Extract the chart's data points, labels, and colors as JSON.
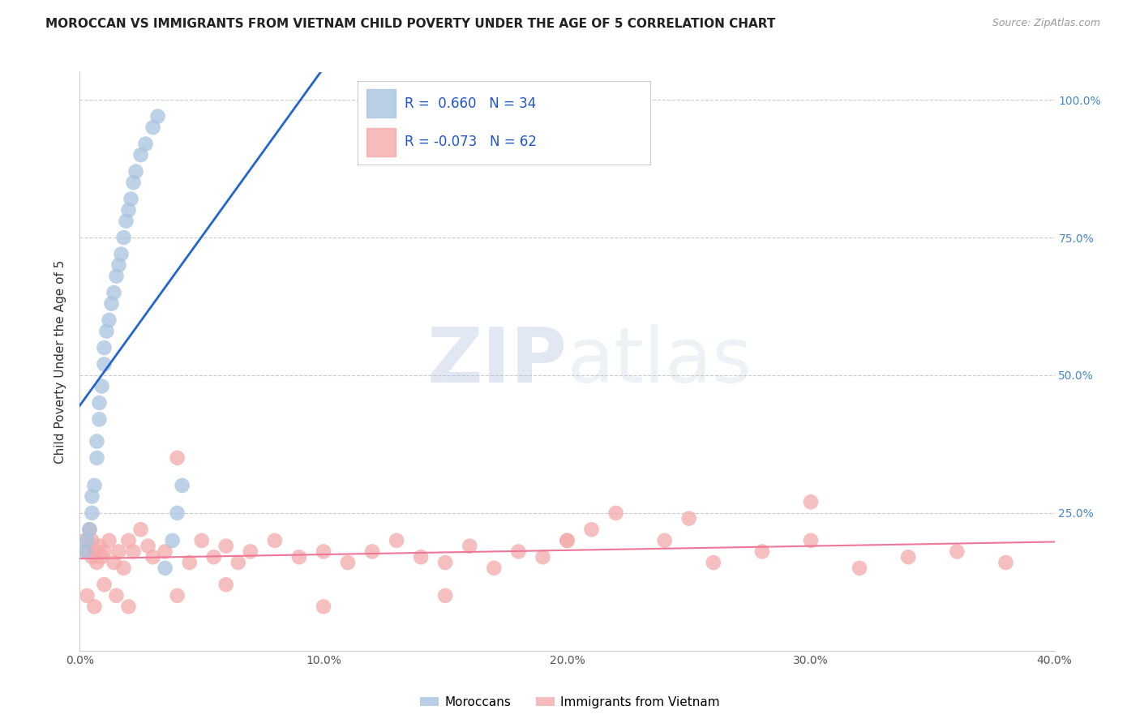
{
  "title": "MOROCCAN VS IMMIGRANTS FROM VIETNAM CHILD POVERTY UNDER THE AGE OF 5 CORRELATION CHART",
  "source": "Source: ZipAtlas.com",
  "ylabel": "Child Poverty Under the Age of 5",
  "watermark": "ZIPatlas",
  "legend_blue_label": "Moroccans",
  "legend_pink_label": "Immigrants from Vietnam",
  "R_blue": 0.66,
  "N_blue": 34,
  "R_pink": -0.073,
  "N_pink": 62,
  "blue_color": "#A8C4E0",
  "pink_color": "#F4AAAA",
  "line_blue": "#2266CC",
  "line_pink": "#EE7799",
  "background": "#FFFFFF",
  "grid_color": "#CCCCCC",
  "xlim": [
    0.0,
    0.4
  ],
  "ylim": [
    0.0,
    1.05
  ],
  "xticks": [
    0.0,
    0.1,
    0.2,
    0.3,
    0.4
  ],
  "xticklabels": [
    "0.0%",
    "10.0%",
    "20.0%",
    "30.0%",
    "40.0%"
  ],
  "yticks": [
    0.25,
    0.5,
    0.75,
    1.0
  ],
  "yticklabels": [
    "25.0%",
    "50.0%",
    "75.0%",
    "100.0%"
  ],
  "blue_x": [
    0.002,
    0.003,
    0.004,
    0.005,
    0.005,
    0.006,
    0.007,
    0.007,
    0.008,
    0.008,
    0.009,
    0.01,
    0.01,
    0.011,
    0.012,
    0.013,
    0.014,
    0.015,
    0.016,
    0.017,
    0.018,
    0.019,
    0.02,
    0.021,
    0.022,
    0.023,
    0.025,
    0.027,
    0.03,
    0.032,
    0.035,
    0.038,
    0.04,
    0.042
  ],
  "blue_y": [
    0.18,
    0.2,
    0.22,
    0.25,
    0.28,
    0.3,
    0.35,
    0.38,
    0.42,
    0.45,
    0.48,
    0.52,
    0.55,
    0.58,
    0.6,
    0.63,
    0.65,
    0.68,
    0.7,
    0.72,
    0.75,
    0.78,
    0.8,
    0.82,
    0.85,
    0.87,
    0.9,
    0.92,
    0.95,
    0.97,
    0.15,
    0.2,
    0.25,
    0.3
  ],
  "pink_x": [
    0.002,
    0.003,
    0.004,
    0.005,
    0.005,
    0.006,
    0.007,
    0.008,
    0.009,
    0.01,
    0.012,
    0.014,
    0.016,
    0.018,
    0.02,
    0.022,
    0.025,
    0.028,
    0.03,
    0.035,
    0.04,
    0.045,
    0.05,
    0.055,
    0.06,
    0.065,
    0.07,
    0.08,
    0.09,
    0.1,
    0.11,
    0.12,
    0.13,
    0.14,
    0.15,
    0.16,
    0.17,
    0.18,
    0.19,
    0.2,
    0.21,
    0.22,
    0.24,
    0.26,
    0.28,
    0.3,
    0.32,
    0.34,
    0.36,
    0.38,
    0.003,
    0.006,
    0.01,
    0.015,
    0.02,
    0.04,
    0.06,
    0.1,
    0.15,
    0.2,
    0.25,
    0.3
  ],
  "pink_y": [
    0.2,
    0.18,
    0.22,
    0.17,
    0.2,
    0.18,
    0.16,
    0.19,
    0.17,
    0.18,
    0.2,
    0.16,
    0.18,
    0.15,
    0.2,
    0.18,
    0.22,
    0.19,
    0.17,
    0.18,
    0.35,
    0.16,
    0.2,
    0.17,
    0.19,
    0.16,
    0.18,
    0.2,
    0.17,
    0.18,
    0.16,
    0.18,
    0.2,
    0.17,
    0.16,
    0.19,
    0.15,
    0.18,
    0.17,
    0.2,
    0.22,
    0.25,
    0.2,
    0.16,
    0.18,
    0.27,
    0.15,
    0.17,
    0.18,
    0.16,
    0.1,
    0.08,
    0.12,
    0.1,
    0.08,
    0.1,
    0.12,
    0.08,
    0.1,
    0.2,
    0.24,
    0.2
  ]
}
